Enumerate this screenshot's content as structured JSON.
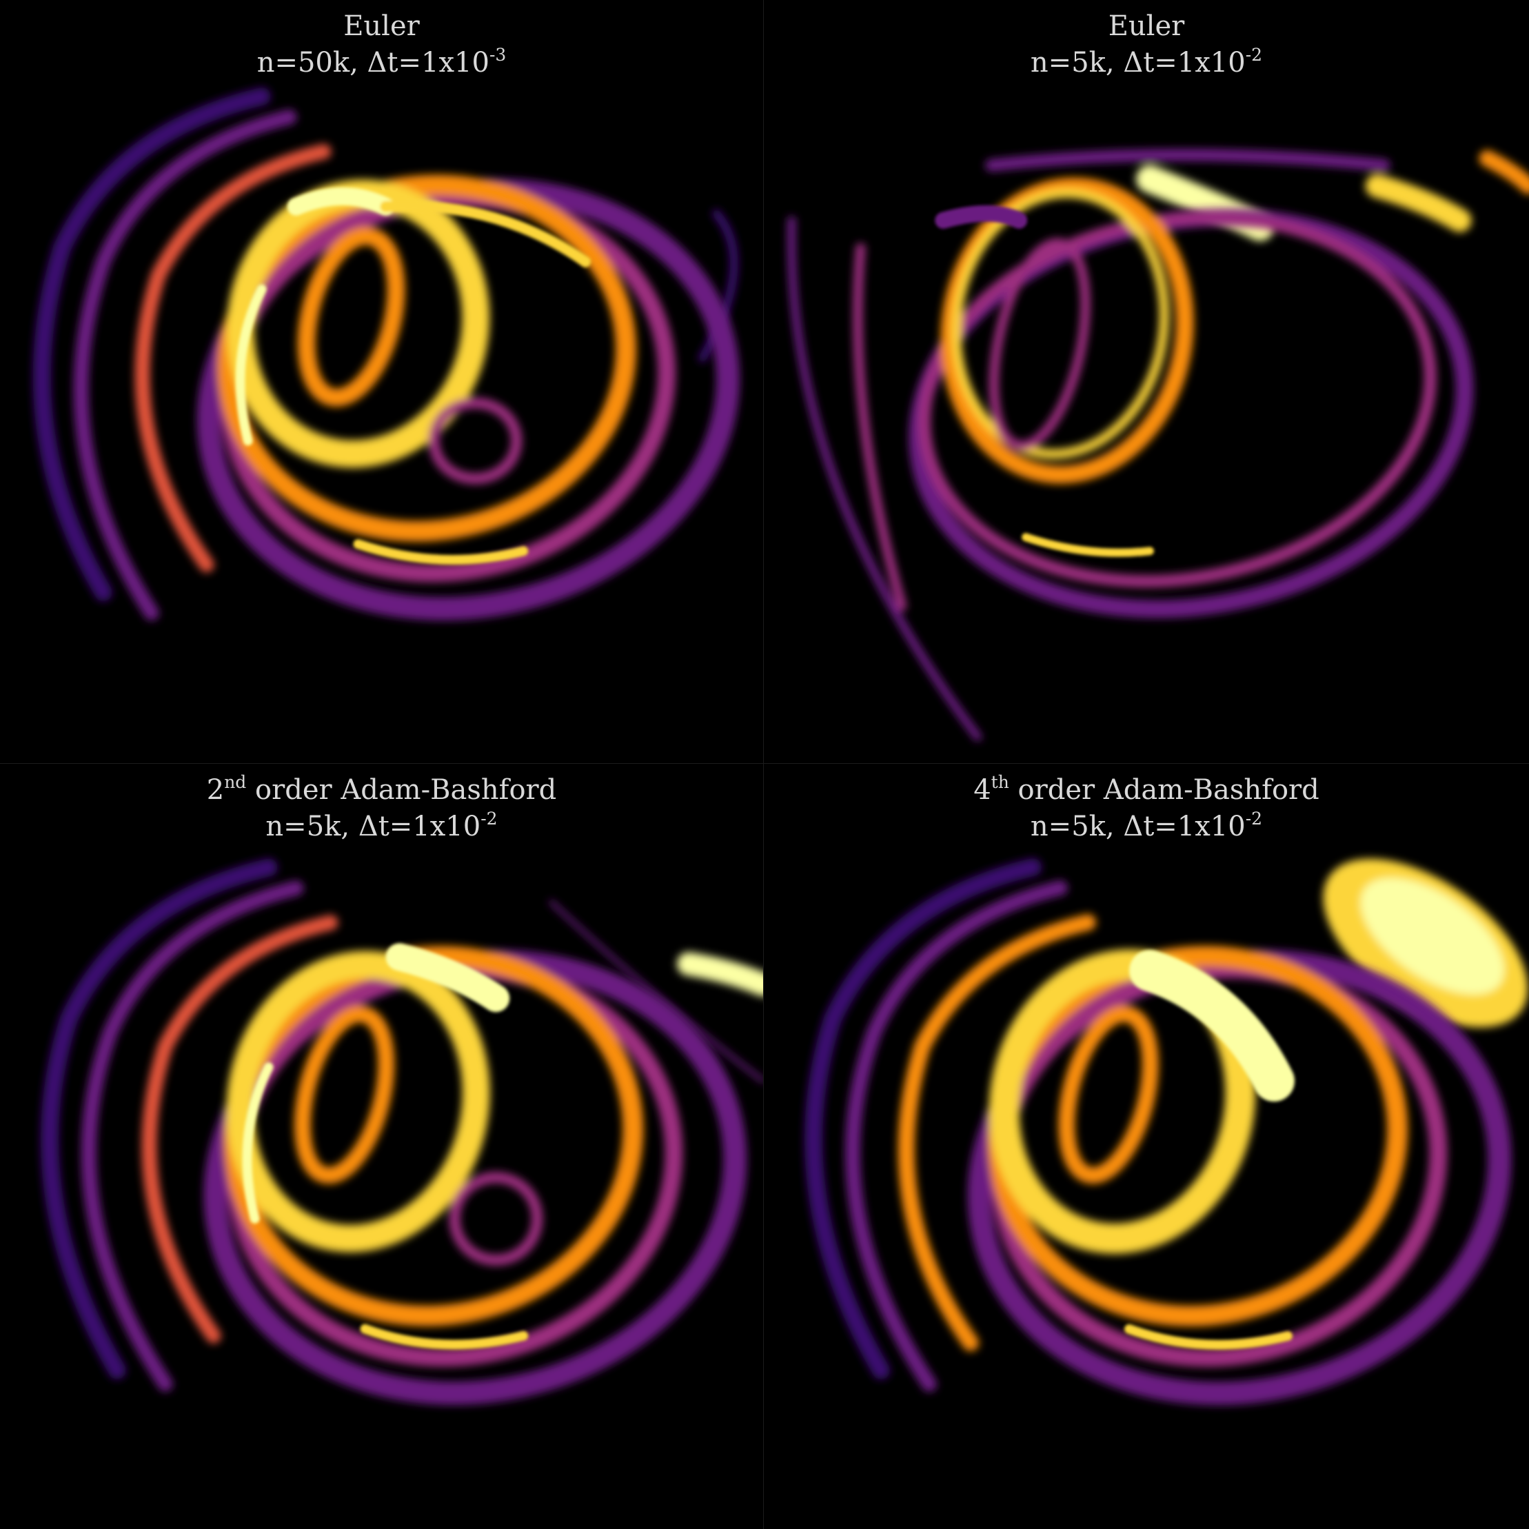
{
  "panels": [
    {
      "title_method": "Euler",
      "title_prefix": "",
      "title_prefix_sup": "",
      "title_params": "n=50k, Δt=1x10",
      "title_exp": "-3"
    },
    {
      "title_method": "Euler",
      "title_prefix": "",
      "title_prefix_sup": "",
      "title_params": "n=5k, Δt=1x10",
      "title_exp": "-2"
    },
    {
      "title_method": " order Adam-Bashford",
      "title_prefix": "2",
      "title_prefix_sup": "nd",
      "title_params": "n=5k, Δt=1x10",
      "title_exp": "-2"
    },
    {
      "title_method": " order Adam-Bashford",
      "title_prefix": "4",
      "title_prefix_sup": "th",
      "title_params": "n=5k, Δt=1x10",
      "title_exp": "-2"
    }
  ],
  "colors": {
    "background": "#000000",
    "title": "#d9d9d9",
    "dark_purple": "#3b0f70",
    "purple": "#6a1c81",
    "magenta": "#9c2e7f",
    "red_orange": "#e0523b",
    "orange": "#f98e09",
    "yellow": "#fcd53a",
    "pale_yellow": "#fcffa4"
  }
}
